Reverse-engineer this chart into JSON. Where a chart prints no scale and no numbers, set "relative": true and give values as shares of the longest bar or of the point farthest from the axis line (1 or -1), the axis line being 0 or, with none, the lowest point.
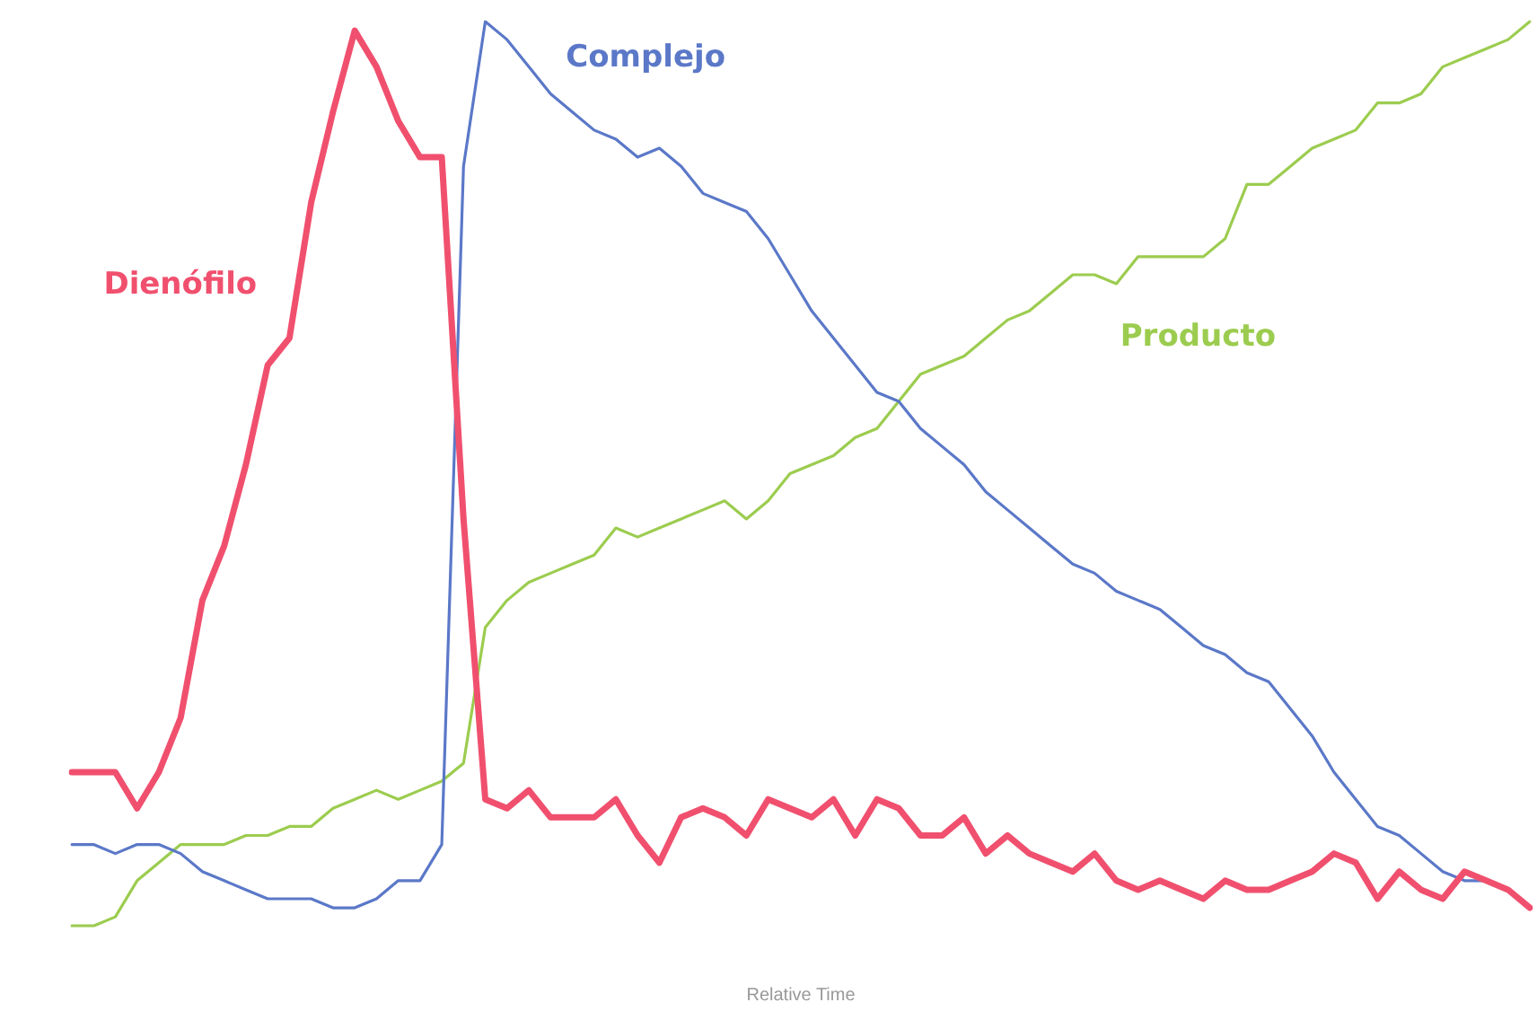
{
  "chart_data": {
    "type": "line",
    "relative": true,
    "xlabel": "Relative Time",
    "grid": false,
    "legend": false,
    "marker": "none",
    "line_style": "solid",
    "categories": [
      null,
      null,
      null,
      null,
      null,
      null,
      null,
      null,
      null,
      null,
      null,
      null,
      null,
      null,
      null,
      null,
      null,
      null,
      null,
      null,
      null,
      null,
      null,
      null,
      null,
      null,
      null,
      null,
      null,
      null,
      null,
      null,
      null,
      null,
      null,
      null,
      null,
      null,
      null,
      null,
      null,
      null,
      null,
      null,
      null,
      null,
      null,
      null,
      null,
      null,
      null,
      null,
      null,
      null,
      null,
      null,
      null,
      null,
      null,
      null,
      null,
      null,
      null,
      null,
      null,
      null,
      null,
      null
    ],
    "series": [
      {
        "name": "Dienófilo",
        "color": "#f0506e",
        "values": [
          0.17,
          0.17,
          0.17,
          0.13,
          0.17,
          0.23,
          0.36,
          0.42,
          0.51,
          0.62,
          0.65,
          0.8,
          0.9,
          0.99,
          0.95,
          0.89,
          0.85,
          0.85,
          0.45,
          0.14,
          0.13,
          0.15,
          0.12,
          0.12,
          0.12,
          0.14,
          0.1,
          0.07,
          0.12,
          0.13,
          0.12,
          0.1,
          0.14,
          0.13,
          0.12,
          0.14,
          0.1,
          0.14,
          0.13,
          0.1,
          0.1,
          0.12,
          0.08,
          0.1,
          0.08,
          0.07,
          0.06,
          0.08,
          0.05,
          0.04,
          0.05,
          0.04,
          0.03,
          0.05,
          0.04,
          0.04,
          0.05,
          0.06,
          0.08,
          0.07,
          0.03,
          0.06,
          0.04,
          0.03,
          0.06,
          0.05,
          0.04,
          0.02
        ]
      },
      {
        "name": "Complejo",
        "color": "#5b78c8",
        "values": [
          0.09,
          0.09,
          0.08,
          0.09,
          0.09,
          0.08,
          0.06,
          0.05,
          0.04,
          0.03,
          0.03,
          0.03,
          0.02,
          0.02,
          0.03,
          0.05,
          0.05,
          0.09,
          0.84,
          1,
          0.98,
          0.95,
          0.92,
          0.9,
          0.88,
          0.87,
          0.85,
          0.86,
          0.84,
          0.81,
          0.8,
          0.79,
          0.76,
          0.72,
          0.68,
          0.65,
          0.62,
          0.59,
          0.58,
          0.55,
          0.53,
          0.51,
          0.48,
          0.46,
          0.44,
          0.42,
          0.4,
          0.39,
          0.37,
          0.36,
          0.35,
          0.33,
          0.31,
          0.3,
          0.28,
          0.27,
          0.24,
          0.21,
          0.17,
          0.14,
          0.11,
          0.1,
          0.08,
          0.06,
          0.05,
          0.05,
          0.04,
          0.02
        ]
      },
      {
        "name": "Producto",
        "color": "#9ccc4f",
        "values": [
          0,
          0,
          0.01,
          0.05,
          0.07,
          0.09,
          0.09,
          0.09,
          0.1,
          0.1,
          0.11,
          0.11,
          0.13,
          0.14,
          0.15,
          0.14,
          0.15,
          0.16,
          0.18,
          0.33,
          0.36,
          0.38,
          0.39,
          0.4,
          0.41,
          0.44,
          0.43,
          0.44,
          0.45,
          0.46,
          0.47,
          0.45,
          0.47,
          0.5,
          0.51,
          0.52,
          0.54,
          0.55,
          0.58,
          0.61,
          0.62,
          0.63,
          0.65,
          0.67,
          0.68,
          0.7,
          0.72,
          0.72,
          0.71,
          0.74,
          0.74,
          0.74,
          0.74,
          0.76,
          0.82,
          0.82,
          0.84,
          0.86,
          0.87,
          0.88,
          0.91,
          0.91,
          0.92,
          0.95,
          0.96,
          0.97,
          0.98,
          1
        ]
      }
    ]
  }
}
